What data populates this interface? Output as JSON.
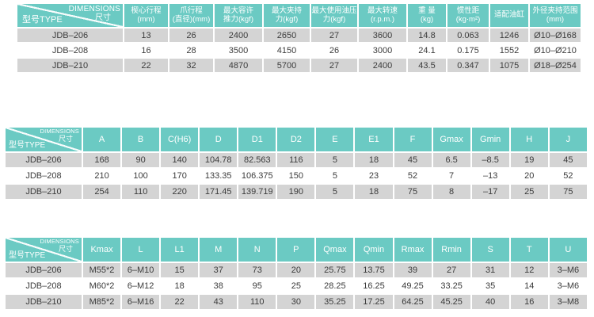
{
  "colors": {
    "header_bg": "#6BCAC3",
    "header_text": "#FFFFFF",
    "row_gray": "#D4D4D4",
    "row_white": "#FFFFFF",
    "cell_text": "#3B3B3B",
    "page_bg": "#FFFFFF"
  },
  "corner_label": {
    "en": "DIMENSIONS",
    "cn": "尺寸",
    "type": "型号TYPE"
  },
  "tables": [
    {
      "title": "performance-specifications",
      "columns": [
        [
          "楔心行程",
          "(mm)"
        ],
        [
          "爪行程",
          "(直径)(mm)"
        ],
        [
          "最大容许",
          "推力(kgf)"
        ],
        [
          "最大夹持",
          "力(kgf)"
        ],
        [
          "最大使用油压",
          "力(kgf)"
        ],
        [
          "最大转速",
          "(r.p.m.)"
        ],
        [
          "重 量",
          "(kg)"
        ],
        [
          "惯性距",
          "(kg·m²)"
        ],
        [
          "适配油缸"
        ],
        [
          "外径夹持范围",
          "(mm)"
        ]
      ],
      "rows": [
        {
          "model": "JDB–206",
          "values": [
            "13",
            "26",
            "2400",
            "2650",
            "27",
            "3600",
            "14.8",
            "0.063",
            "1246",
            "Ø10–Ø168"
          ]
        },
        {
          "model": "JDB–208",
          "values": [
            "16",
            "28",
            "3500",
            "4150",
            "26",
            "3000",
            "24.1",
            "0.175",
            "1552",
            "Ø10–Ø210"
          ]
        },
        {
          "model": "JDB–210",
          "values": [
            "22",
            "32",
            "4870",
            "5700",
            "27",
            "2400",
            "43.5",
            "0.347",
            "1075",
            "Ø18–Ø254"
          ]
        }
      ]
    },
    {
      "title": "dimensions-a-to-j",
      "columns": [
        [
          "A"
        ],
        [
          "B"
        ],
        [
          "C(H6)"
        ],
        [
          "D"
        ],
        [
          "D1"
        ],
        [
          "D2"
        ],
        [
          "E"
        ],
        [
          "E1"
        ],
        [
          "F"
        ],
        [
          "Gmax"
        ],
        [
          "Gmin"
        ],
        [
          "H"
        ],
        [
          "J"
        ]
      ],
      "rows": [
        {
          "model": "JDB–206",
          "values": [
            "168",
            "90",
            "140",
            "104.78",
            "82.563",
            "116",
            "5",
            "18",
            "45",
            "6.5",
            "–8.5",
            "19",
            "45"
          ]
        },
        {
          "model": "JDB–208",
          "values": [
            "210",
            "100",
            "170",
            "133.35",
            "106.375",
            "150",
            "5",
            "23",
            "52",
            "7",
            "–13",
            "20",
            "52"
          ]
        },
        {
          "model": "JDB–210",
          "values": [
            "254",
            "110",
            "220",
            "171.45",
            "139.719",
            "190",
            "5",
            "18",
            "75",
            "8",
            "–17",
            "25",
            "75"
          ]
        }
      ]
    },
    {
      "title": "dimensions-k-to-u",
      "columns": [
        [
          "Kmax"
        ],
        [
          "L"
        ],
        [
          "L1"
        ],
        [
          "M"
        ],
        [
          "N"
        ],
        [
          "P"
        ],
        [
          "Qmax"
        ],
        [
          "Qmin"
        ],
        [
          "Rmax"
        ],
        [
          "Rmin"
        ],
        [
          "S"
        ],
        [
          "T"
        ],
        [
          "U"
        ]
      ],
      "rows": [
        {
          "model": "JDB–206",
          "values": [
            "M55*2",
            "6–M10",
            "15",
            "37",
            "73",
            "20",
            "25.75",
            "13.75",
            "39",
            "27",
            "31",
            "12",
            "3–M6"
          ]
        },
        {
          "model": "JDB–208",
          "values": [
            "M60*2",
            "6–M12",
            "18",
            "38",
            "95",
            "25",
            "28.25",
            "16.25",
            "49.25",
            "33.25",
            "35",
            "14",
            "3–M6"
          ]
        },
        {
          "model": "JDB–210",
          "values": [
            "M85*2",
            "6–M16",
            "22",
            "43",
            "110",
            "30",
            "35.25",
            "17.25",
            "64.25",
            "45.25",
            "40",
            "16",
            "3–M8"
          ]
        }
      ]
    }
  ]
}
